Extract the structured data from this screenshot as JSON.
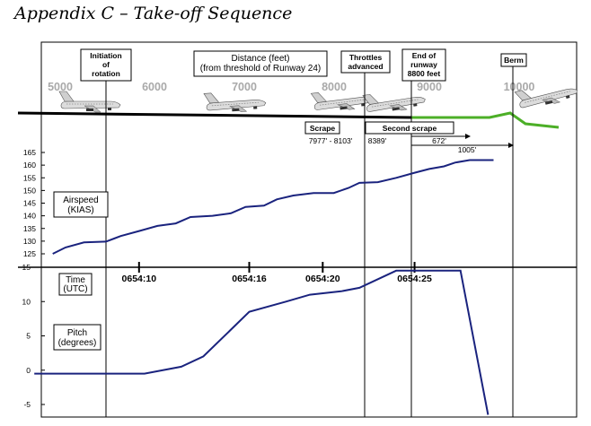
{
  "title": "Appendix C – Take-off Sequence",
  "colors": {
    "series": "#1a237e",
    "ground": "#000000",
    "grass": "#4caf27"
  },
  "chart_data": {
    "type": "line",
    "top_axis": {
      "label": "Distance (feet)\n(from threshold of Runway 24)",
      "ticks": [
        "5000",
        "6000",
        "7000",
        "8000",
        "9000",
        "10000"
      ]
    },
    "events": [
      {
        "id": "rotation",
        "label": "Initiation\nof\nrotation"
      },
      {
        "id": "throttles",
        "label": "Throttles\nadvanced"
      },
      {
        "id": "runway-end",
        "label": "End of\nrunway\n8800 feet"
      },
      {
        "id": "berm",
        "label": "Berm"
      }
    ],
    "annotations": {
      "scrape_label": "Scrape",
      "scrape_range": "7977' - 8103'",
      "second_scrape_label": "Second scrape",
      "second_scrape_start": "8389'",
      "arrow_672": "672'",
      "arrow_1005": "1005'"
    },
    "time_axis": {
      "label": "Time\n(UTC)",
      "ticks": [
        {
          "t": 10,
          "label": "0654:10"
        },
        {
          "t": 16,
          "label": "0654:16"
        },
        {
          "t": 20,
          "label": "0654:20"
        },
        {
          "t": 25,
          "label": "0654:25"
        }
      ]
    },
    "airspeed": {
      "ylabel": "Airspeed\n(KIAS)",
      "ylim": [
        125,
        165
      ],
      "yticks": [
        165,
        160,
        155,
        150,
        145,
        140,
        135,
        130,
        125
      ],
      "points": [
        [
          5.3,
          125
        ],
        [
          6.0,
          127.5
        ],
        [
          7.0,
          129.5
        ],
        [
          8.2,
          129.8
        ],
        [
          9.0,
          132
        ],
        [
          10.0,
          134
        ],
        [
          11.0,
          136
        ],
        [
          12.0,
          137
        ],
        [
          12.8,
          139.5
        ],
        [
          14.0,
          140
        ],
        [
          15.0,
          141
        ],
        [
          15.8,
          143.5
        ],
        [
          16.8,
          144
        ],
        [
          17.5,
          146.5
        ],
        [
          18.4,
          148
        ],
        [
          19.5,
          149
        ],
        [
          20.6,
          149
        ],
        [
          21.4,
          151
        ],
        [
          22.0,
          153
        ],
        [
          23.0,
          153.3
        ],
        [
          24.0,
          155
        ],
        [
          25.0,
          157
        ],
        [
          25.8,
          158.5
        ],
        [
          26.6,
          159.5
        ],
        [
          27.2,
          161
        ],
        [
          28.0,
          162
        ],
        [
          29.3,
          162
        ]
      ]
    },
    "pitch": {
      "ylabel": "Pitch\n(degrees)",
      "ylim": [
        -5,
        15
      ],
      "yticks": [
        15,
        10,
        5,
        0,
        -5
      ],
      "points": [
        [
          4.3,
          -0.5
        ],
        [
          8.0,
          -0.5
        ],
        [
          10.3,
          -0.5
        ],
        [
          12.3,
          0.5
        ],
        [
          13.5,
          2
        ],
        [
          16.0,
          8.5
        ],
        [
          18.0,
          10
        ],
        [
          19.3,
          11
        ],
        [
          21.0,
          11.5
        ],
        [
          22.0,
          12
        ],
        [
          24.0,
          14.5
        ],
        [
          27.5,
          14.5
        ],
        [
          29.0,
          -6.5
        ]
      ]
    }
  }
}
